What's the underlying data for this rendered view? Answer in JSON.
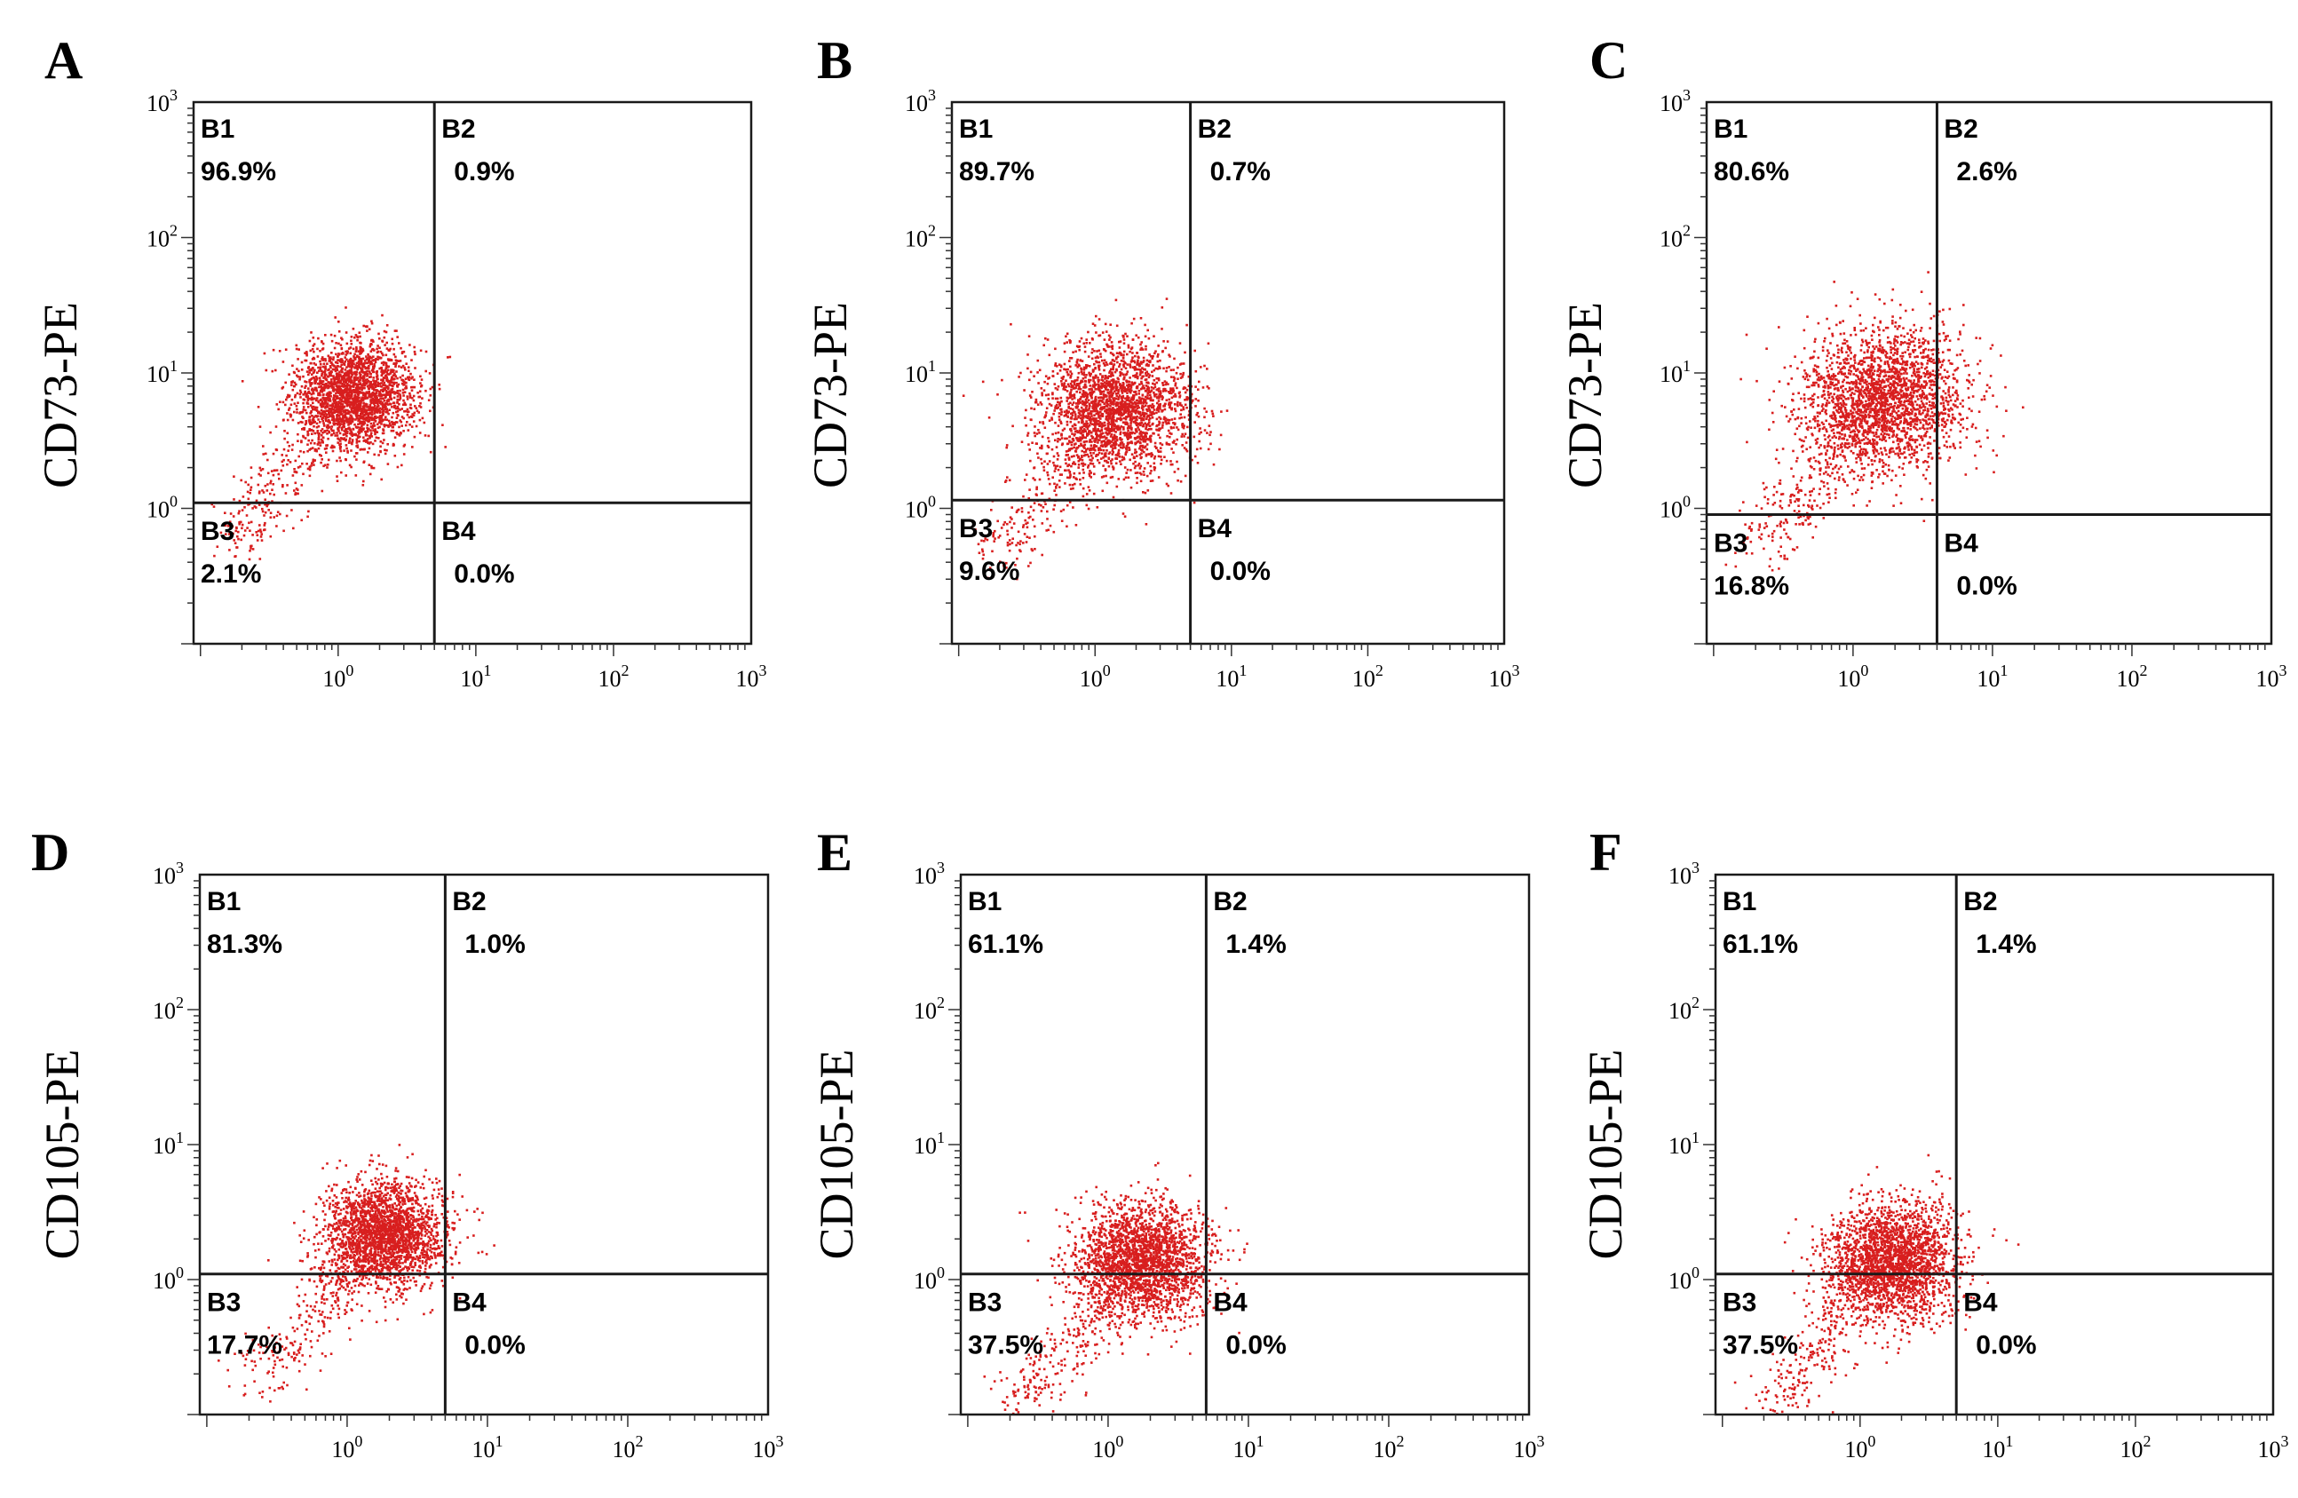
{
  "chart_data": [
    {
      "type": "scatter",
      "panel_label": "A",
      "ylabel": "CD73-PE",
      "xlabel": "",
      "x_scale": "log",
      "y_scale": "log",
      "x_ticks": [
        {
          "base": "10",
          "exp": "0"
        },
        {
          "base": "10",
          "exp": "1"
        },
        {
          "base": "10",
          "exp": "2"
        },
        {
          "base": "10",
          "exp": "3"
        }
      ],
      "y_ticks": [
        {
          "base": "10",
          "exp": "0"
        },
        {
          "base": "10",
          "exp": "1"
        },
        {
          "base": "10",
          "exp": "2"
        },
        {
          "base": "10",
          "exp": "3"
        }
      ],
      "gate": {
        "x": 5,
        "y": 1.1
      },
      "quadrants": [
        {
          "name": "B1",
          "value": "96.9%"
        },
        {
          "name": "B2",
          "value": "0.9%"
        },
        {
          "name": "B3",
          "value": "2.1%"
        },
        {
          "name": "B4",
          "value": "0.0%"
        }
      ],
      "population": {
        "center_x": 1.3,
        "center_y": 7.0,
        "spread": 0.22
      },
      "color": "#d81e1e"
    },
    {
      "type": "scatter",
      "panel_label": "B",
      "ylabel": "CD73-PE",
      "xlabel": "",
      "x_scale": "log",
      "y_scale": "log",
      "x_ticks": [
        {
          "base": "10",
          "exp": "0"
        },
        {
          "base": "10",
          "exp": "1"
        },
        {
          "base": "10",
          "exp": "2"
        },
        {
          "base": "10",
          "exp": "3"
        }
      ],
      "y_ticks": [
        {
          "base": "10",
          "exp": "0"
        },
        {
          "base": "10",
          "exp": "1"
        },
        {
          "base": "10",
          "exp": "2"
        },
        {
          "base": "10",
          "exp": "3"
        }
      ],
      "gate": {
        "x": 5,
        "y": 1.15
      },
      "quadrants": [
        {
          "name": "B1",
          "value": "89.7%"
        },
        {
          "name": "B2",
          "value": "0.7%"
        },
        {
          "name": "B3",
          "value": "9.6%"
        },
        {
          "name": "B4",
          "value": "0.0%"
        }
      ],
      "population": {
        "center_x": 1.4,
        "center_y": 5.5,
        "spread": 0.28
      },
      "color": "#d81e1e"
    },
    {
      "type": "scatter",
      "panel_label": "C",
      "ylabel": "CD73-PE",
      "xlabel": "",
      "x_scale": "log",
      "y_scale": "log",
      "x_ticks": [
        {
          "base": "10",
          "exp": "0"
        },
        {
          "base": "10",
          "exp": "1"
        },
        {
          "base": "10",
          "exp": "2"
        },
        {
          "base": "10",
          "exp": "3"
        }
      ],
      "y_ticks": [
        {
          "base": "10",
          "exp": "0"
        },
        {
          "base": "10",
          "exp": "1"
        },
        {
          "base": "10",
          "exp": "2"
        },
        {
          "base": "10",
          "exp": "3"
        }
      ],
      "gate": {
        "x": 4,
        "y": 0.9
      },
      "quadrants": [
        {
          "name": "B1",
          "value": "80.6%"
        },
        {
          "name": "B2",
          "value": "2.6%"
        },
        {
          "name": "B3",
          "value": "16.8%"
        },
        {
          "name": "B4",
          "value": "0.0%"
        }
      ],
      "population": {
        "center_x": 1.6,
        "center_y": 6.5,
        "spread": 0.3
      },
      "color": "#d81e1e"
    },
    {
      "type": "scatter",
      "panel_label": "D",
      "ylabel": "CD105-PE",
      "xlabel": "",
      "x_scale": "log",
      "y_scale": "log",
      "x_ticks": [
        {
          "base": "10",
          "exp": "0"
        },
        {
          "base": "10",
          "exp": "1"
        },
        {
          "base": "10",
          "exp": "2"
        },
        {
          "base": "10",
          "exp": "3"
        }
      ],
      "y_ticks": [
        {
          "base": "10",
          "exp": "0"
        },
        {
          "base": "10",
          "exp": "1"
        },
        {
          "base": "10",
          "exp": "2"
        },
        {
          "base": "10",
          "exp": "3"
        }
      ],
      "gate": {
        "x": 5,
        "y": 1.1
      },
      "quadrants": [
        {
          "name": "B1",
          "value": "81.3%"
        },
        {
          "name": "B2",
          "value": "1.0%"
        },
        {
          "name": "B3",
          "value": "17.7%"
        },
        {
          "name": "B4",
          "value": "0.0%"
        }
      ],
      "population": {
        "center_x": 1.8,
        "center_y": 2.2,
        "spread": 0.22
      },
      "color": "#d81e1e"
    },
    {
      "type": "scatter",
      "panel_label": "E",
      "ylabel": "CD105-PE",
      "xlabel": "",
      "x_scale": "log",
      "y_scale": "log",
      "x_ticks": [
        {
          "base": "10",
          "exp": "0"
        },
        {
          "base": "10",
          "exp": "1"
        },
        {
          "base": "10",
          "exp": "2"
        },
        {
          "base": "10",
          "exp": "3"
        }
      ],
      "y_ticks": [
        {
          "base": "10",
          "exp": "0"
        },
        {
          "base": "10",
          "exp": "1"
        },
        {
          "base": "10",
          "exp": "2"
        },
        {
          "base": "10",
          "exp": "3"
        }
      ],
      "gate": {
        "x": 5,
        "y": 1.1
      },
      "quadrants": [
        {
          "name": "B1",
          "value": "61.1%"
        },
        {
          "name": "B2",
          "value": "1.4%"
        },
        {
          "name": "B3",
          "value": "37.5%"
        },
        {
          "name": "B4",
          "value": "0.0%"
        }
      ],
      "population": {
        "center_x": 1.7,
        "center_y": 1.4,
        "spread": 0.24
      },
      "color": "#d81e1e"
    },
    {
      "type": "scatter",
      "panel_label": "F",
      "ylabel": "CD105-PE",
      "xlabel": "",
      "x_scale": "log",
      "y_scale": "log",
      "x_ticks": [
        {
          "base": "10",
          "exp": "0"
        },
        {
          "base": "10",
          "exp": "1"
        },
        {
          "base": "10",
          "exp": "2"
        },
        {
          "base": "10",
          "exp": "3"
        }
      ],
      "y_ticks": [
        {
          "base": "10",
          "exp": "0"
        },
        {
          "base": "10",
          "exp": "1"
        },
        {
          "base": "10",
          "exp": "2"
        },
        {
          "base": "10",
          "exp": "3"
        }
      ],
      "gate": {
        "x": 5,
        "y": 1.1
      },
      "quadrants": [
        {
          "name": "B1",
          "value": "61.1%"
        },
        {
          "name": "B2",
          "value": "1.4%"
        },
        {
          "name": "B3",
          "value": "37.5%"
        },
        {
          "name": "B4",
          "value": "0.0%"
        }
      ],
      "population": {
        "center_x": 1.7,
        "center_y": 1.4,
        "spread": 0.24
      },
      "color": "#d81e1e"
    }
  ]
}
